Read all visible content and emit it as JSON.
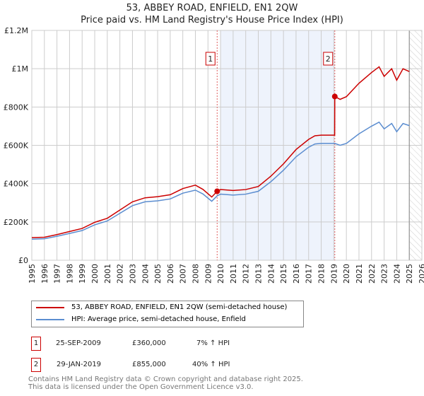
{
  "title": "53, ABBEY ROAD, ENFIELD, EN1 2QW",
  "subtitle": "Price paid vs. HM Land Registry's House Price Index (HPI)",
  "chart_data": {
    "type": "line",
    "xlim": [
      1995,
      2026
    ],
    "ylim": [
      0,
      1200000
    ],
    "yticks": [
      0,
      200000,
      400000,
      600000,
      800000,
      1000000,
      1200000
    ],
    "ytick_labels": [
      "£0",
      "£200K",
      "£400K",
      "£600K",
      "£800K",
      "£1M",
      "£1.2M"
    ],
    "xticks": [
      1995,
      1996,
      1997,
      1998,
      1999,
      2000,
      2001,
      2002,
      2003,
      2004,
      2005,
      2006,
      2007,
      2008,
      2009,
      2010,
      2011,
      2012,
      2013,
      2014,
      2015,
      2016,
      2017,
      2018,
      2019,
      2020,
      2021,
      2022,
      2023,
      2024,
      2025,
      2026
    ],
    "grid": true,
    "shaded_period": [
      2010,
      2019.08
    ],
    "forecast_hatch_from": 2025,
    "series": [
      {
        "name": "53, ABBEY ROAD, ENFIELD, EN1 2QW (semi-detached house)",
        "color": "#cc0000",
        "x": [
          1995,
          1996,
          1997,
          1998,
          1999,
          2000,
          2001,
          2002,
          2003,
          2004,
          2005,
          2006,
          2007,
          2008,
          2008.6,
          2009.3,
          2009.73,
          2010,
          2011,
          2012,
          2013,
          2014,
          2015,
          2016,
          2017,
          2017.5,
          2018,
          2019.07,
          2019.08,
          2019.5,
          2020,
          2021,
          2022,
          2022.6,
          2023,
          2023.6,
          2024,
          2024.5,
          2025
        ],
        "y": [
          118000,
          120000,
          134000,
          150000,
          166000,
          198000,
          219000,
          262000,
          305000,
          326000,
          332000,
          342000,
          374000,
          392000,
          370000,
          330000,
          360000,
          369000,
          364000,
          369000,
          385000,
          439000,
          503000,
          578000,
          631000,
          650000,
          653000,
          653000,
          855000,
          840000,
          854000,
          924000,
          980000,
          1010000,
          960000,
          1000000,
          940000,
          1000000,
          985000
        ]
      },
      {
        "name": "HPI: Average price, semi-detached house, Enfield",
        "color": "#5b8dd0",
        "x": [
          1995,
          1996,
          1997,
          1998,
          1999,
          2000,
          2001,
          2002,
          2003,
          2004,
          2005,
          2006,
          2007,
          2008,
          2008.6,
          2009.3,
          2009.73,
          2010,
          2011,
          2012,
          2013,
          2014,
          2015,
          2016,
          2017,
          2017.5,
          2018,
          2019.08,
          2019.5,
          2020,
          2021,
          2022,
          2022.6,
          2023,
          2023.6,
          2024,
          2024.5,
          2025
        ],
        "y": [
          110000,
          112000,
          125000,
          140000,
          155000,
          185000,
          205000,
          245000,
          285000,
          305000,
          310000,
          320000,
          350000,
          366000,
          346000,
          308000,
          336000,
          345000,
          340000,
          345000,
          360000,
          410000,
          470000,
          540000,
          590000,
          607000,
          610000,
          610000,
          600000,
          610000,
          660000,
          700000,
          721000,
          686000,
          714000,
          671000,
          714000,
          703000
        ]
      }
    ],
    "sales": [
      {
        "label": "1",
        "x": 2009.73,
        "price": 360000,
        "date": "25-SEP-2009",
        "price_text": "£360,000",
        "hpi": "7% ↑ HPI"
      },
      {
        "label": "2",
        "x": 2019.08,
        "price": 855000,
        "date": "29-JAN-2019",
        "price_text": "£855,000",
        "hpi": "40% ↑ HPI"
      }
    ]
  },
  "footer1": "Contains HM Land Registry data © Crown copyright and database right 2025.",
  "footer2": "This data is licensed under the Open Government Licence v3.0."
}
